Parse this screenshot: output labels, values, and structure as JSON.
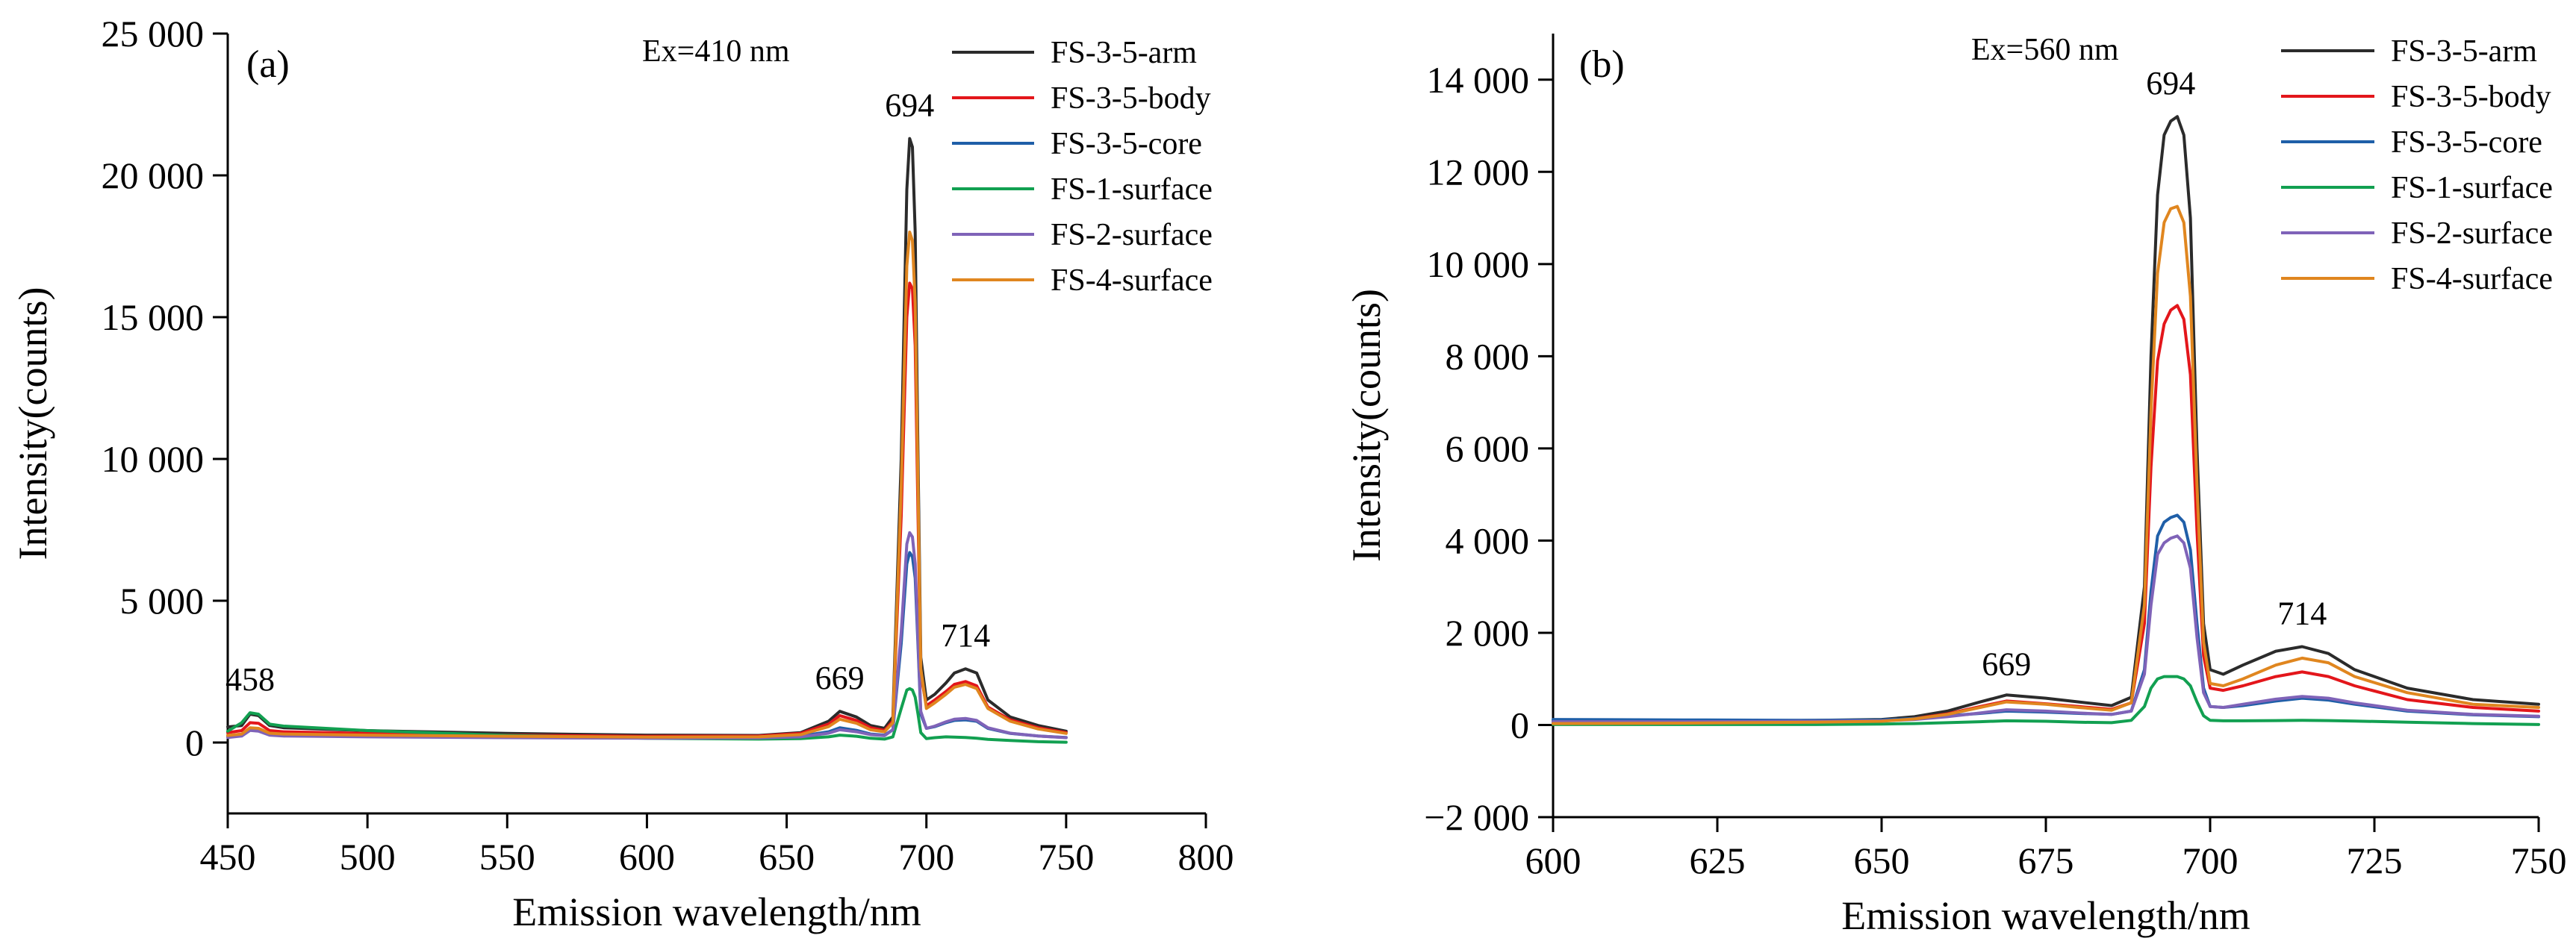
{
  "chart_data": [
    {
      "type": "line",
      "panel_label": "(a)",
      "annotation": "Ex=410 nm",
      "xlabel": "Emission wavelength/nm",
      "ylabel": "Intensity(counts)",
      "xlim": [
        450,
        800
      ],
      "ylim": [
        -2500,
        25000
      ],
      "xticks": [
        450,
        500,
        550,
        600,
        650,
        700,
        750,
        800
      ],
      "xtick_labels": [
        "450",
        "500",
        "550",
        "600",
        "650",
        "700",
        "750",
        "800"
      ],
      "yticks": [
        0,
        5000,
        10000,
        15000,
        20000,
        25000
      ],
      "ytick_labels": [
        "0",
        "5 000",
        "10 000",
        "15 000",
        "20 000",
        "25 000"
      ],
      "grid": false,
      "legend_position": "top-right",
      "peak_labels": [
        {
          "text": "458",
          "x": 458,
          "y": 1050
        },
        {
          "text": "669",
          "x": 669,
          "y": 1100
        },
        {
          "text": "694",
          "x": 694,
          "y": 21300
        },
        {
          "text": "714",
          "x": 714,
          "y": 2600
        }
      ],
      "series": [
        {
          "name": "FS-3-5-arm",
          "color": "#2b2b2b",
          "x": [
            450,
            455,
            458,
            461,
            465,
            470,
            500,
            550,
            600,
            640,
            655,
            665,
            669,
            675,
            680,
            685,
            688,
            691,
            693,
            694,
            695,
            696,
            697,
            698,
            700,
            703,
            707,
            710,
            714,
            718,
            722,
            730,
            740,
            750
          ],
          "y": [
            550,
            600,
            1000,
            950,
            600,
            520,
            420,
            320,
            260,
            250,
            350,
            750,
            1100,
            900,
            600,
            500,
            900,
            10000,
            19500,
            21300,
            21000,
            18000,
            10000,
            3000,
            1500,
            1700,
            2100,
            2450,
            2600,
            2450,
            1500,
            900,
            600,
            400
          ]
        },
        {
          "name": "FS-3-5-body",
          "color": "#e3161b",
          "x": [
            450,
            455,
            458,
            461,
            465,
            470,
            500,
            550,
            600,
            640,
            655,
            665,
            669,
            675,
            680,
            685,
            688,
            691,
            693,
            694,
            695,
            696,
            697,
            698,
            700,
            703,
            707,
            710,
            714,
            718,
            722,
            730,
            740,
            750
          ],
          "y": [
            350,
            420,
            700,
            680,
            420,
            380,
            320,
            260,
            220,
            230,
            320,
            650,
            950,
            780,
            520,
            430,
            750,
            8000,
            15000,
            16200,
            16000,
            14000,
            8000,
            2400,
            1300,
            1500,
            1800,
            2050,
            2150,
            2000,
            1250,
            800,
            520,
            350
          ]
        },
        {
          "name": "FS-3-5-core",
          "color": "#1f5fa8",
          "x": [
            450,
            455,
            458,
            461,
            465,
            470,
            500,
            550,
            600,
            640,
            655,
            665,
            669,
            675,
            680,
            685,
            688,
            691,
            693,
            694,
            695,
            696,
            697,
            698,
            700,
            703,
            707,
            710,
            714,
            718,
            722,
            730,
            740,
            750
          ],
          "y": [
            230,
            280,
            480,
            450,
            300,
            270,
            230,
            200,
            180,
            190,
            230,
            380,
            520,
            430,
            300,
            260,
            450,
            3500,
            6300,
            6700,
            6550,
            5800,
            3400,
            1000,
            500,
            560,
            700,
            780,
            800,
            750,
            500,
            320,
            230,
            180
          ]
        },
        {
          "name": "FS-1-surface",
          "color": "#12a051",
          "x": [
            450,
            455,
            458,
            461,
            465,
            470,
            500,
            550,
            600,
            640,
            655,
            665,
            669,
            675,
            680,
            685,
            688,
            691,
            693,
            694,
            695,
            696,
            697,
            698,
            700,
            703,
            707,
            710,
            714,
            718,
            722,
            730,
            740,
            750
          ],
          "y": [
            400,
            700,
            1050,
            1000,
            650,
            580,
            420,
            250,
            150,
            120,
            140,
            200,
            260,
            220,
            150,
            120,
            200,
            1200,
            1850,
            1900,
            1850,
            1600,
            1000,
            350,
            140,
            170,
            200,
            190,
            180,
            150,
            110,
            70,
            30,
            10
          ]
        },
        {
          "name": "FS-2-surface",
          "color": "#7f63b8",
          "x": [
            450,
            455,
            458,
            461,
            465,
            470,
            500,
            550,
            600,
            640,
            655,
            665,
            669,
            675,
            680,
            685,
            688,
            691,
            693,
            694,
            695,
            696,
            697,
            698,
            700,
            703,
            707,
            710,
            714,
            718,
            722,
            730,
            740,
            750
          ],
          "y": [
            180,
            230,
            430,
            400,
            260,
            230,
            200,
            170,
            150,
            160,
            200,
            330,
            450,
            380,
            280,
            240,
            450,
            3900,
            7000,
            7400,
            7250,
            6300,
            3600,
            1100,
            500,
            580,
            730,
            820,
            850,
            780,
            520,
            330,
            230,
            170
          ]
        },
        {
          "name": "FS-4-surface",
          "color": "#e0861f",
          "x": [
            450,
            455,
            458,
            461,
            465,
            470,
            500,
            550,
            600,
            640,
            655,
            665,
            669,
            675,
            680,
            685,
            688,
            691,
            693,
            694,
            695,
            696,
            697,
            698,
            700,
            703,
            707,
            710,
            714,
            718,
            722,
            730,
            740,
            750
          ],
          "y": [
            250,
            300,
            520,
            500,
            330,
            300,
            260,
            220,
            190,
            200,
            280,
            560,
            820,
            680,
            450,
            380,
            700,
            9000,
            16800,
            18000,
            17700,
            15500,
            9000,
            2600,
            1200,
            1400,
            1700,
            1950,
            2050,
            1900,
            1200,
            750,
            480,
            320
          ]
        }
      ]
    },
    {
      "type": "line",
      "panel_label": "(b)",
      "annotation": "Ex=560 nm",
      "xlabel": "Emission wavelength/nm",
      "ylabel": "Intensity(counts)",
      "xlim": [
        600,
        750
      ],
      "ylim": [
        -2000,
        15000
      ],
      "xticks": [
        600,
        625,
        650,
        675,
        700,
        725,
        750
      ],
      "xtick_labels": [
        "600",
        "625",
        "650",
        "675",
        "700",
        "725",
        "750"
      ],
      "yticks": [
        -2000,
        0,
        2000,
        4000,
        6000,
        8000,
        10000,
        12000,
        14000
      ],
      "ytick_labels": [
        "−2 000",
        "0",
        "2 000",
        "4 000",
        "6 000",
        "8 000",
        "10 000",
        "12 000",
        "14 000"
      ],
      "grid": false,
      "legend_position": "top-right",
      "peak_labels": [
        {
          "text": "669",
          "x": 669,
          "y": 600
        },
        {
          "text": "694",
          "x": 694,
          "y": 13200
        },
        {
          "text": "714",
          "x": 714,
          "y": 1700
        }
      ],
      "series": [
        {
          "name": "FS-3-5-arm",
          "color": "#2b2b2b",
          "x": [
            600,
            620,
            640,
            650,
            655,
            660,
            665,
            669,
            675,
            680,
            685,
            688,
            690,
            691,
            692,
            693,
            694,
            695,
            696,
            697,
            698,
            699,
            700,
            702,
            705,
            710,
            714,
            718,
            722,
            730,
            740,
            750
          ],
          "y": [
            80,
            90,
            100,
            120,
            180,
            300,
            500,
            650,
            580,
            500,
            420,
            600,
            3000,
            8000,
            11500,
            12800,
            13100,
            13200,
            12800,
            11000,
            6000,
            2200,
            1200,
            1100,
            1300,
            1600,
            1700,
            1550,
            1200,
            800,
            550,
            450
          ]
        },
        {
          "name": "FS-3-5-body",
          "color": "#e3161b",
          "x": [
            600,
            620,
            640,
            650,
            655,
            660,
            665,
            669,
            675,
            680,
            685,
            688,
            690,
            691,
            692,
            693,
            694,
            695,
            696,
            697,
            698,
            699,
            700,
            702,
            705,
            710,
            714,
            718,
            722,
            730,
            740,
            750
          ],
          "y": [
            50,
            60,
            70,
            90,
            140,
            240,
            400,
            520,
            460,
            400,
            340,
            480,
            2200,
            5600,
            7900,
            8700,
            9000,
            9100,
            8800,
            7600,
            4200,
            1500,
            800,
            750,
            850,
            1050,
            1150,
            1050,
            850,
            550,
            380,
            300
          ]
        },
        {
          "name": "FS-3-5-core",
          "color": "#1f5fa8",
          "x": [
            600,
            620,
            640,
            650,
            655,
            660,
            665,
            669,
            675,
            680,
            685,
            688,
            690,
            691,
            692,
            693,
            694,
            695,
            696,
            697,
            698,
            699,
            700,
            702,
            705,
            710,
            714,
            718,
            722,
            730,
            740,
            750
          ],
          "y": [
            120,
            110,
            100,
            110,
            140,
            200,
            250,
            300,
            280,
            250,
            230,
            300,
            1200,
            2900,
            4100,
            4400,
            4500,
            4550,
            4400,
            3800,
            2200,
            800,
            400,
            380,
            420,
            520,
            580,
            540,
            450,
            300,
            220,
            180
          ]
        },
        {
          "name": "FS-1-surface",
          "color": "#12a051",
          "x": [
            600,
            620,
            640,
            650,
            655,
            660,
            665,
            669,
            675,
            680,
            685,
            688,
            690,
            691,
            692,
            693,
            694,
            695,
            696,
            697,
            698,
            699,
            700,
            702,
            705,
            710,
            714,
            718,
            722,
            730,
            740,
            750
          ],
          "y": [
            10,
            10,
            10,
            20,
            30,
            50,
            70,
            90,
            80,
            60,
            50,
            100,
            400,
            800,
            1000,
            1050,
            1050,
            1050,
            1000,
            850,
            500,
            200,
            100,
            90,
            90,
            95,
            100,
            95,
            85,
            60,
            30,
            10
          ]
        },
        {
          "name": "FS-2-surface",
          "color": "#7f63b8",
          "x": [
            600,
            620,
            640,
            650,
            655,
            660,
            665,
            669,
            675,
            680,
            685,
            688,
            690,
            691,
            692,
            693,
            694,
            695,
            696,
            697,
            698,
            699,
            700,
            702,
            705,
            710,
            714,
            718,
            722,
            730,
            740,
            750
          ],
          "y": [
            70,
            70,
            80,
            90,
            120,
            180,
            260,
            330,
            300,
            260,
            230,
            300,
            1100,
            2600,
            3700,
            3950,
            4050,
            4100,
            3950,
            3400,
            1900,
            700,
            400,
            380,
            450,
            560,
            620,
            580,
            480,
            320,
            230,
            190
          ]
        },
        {
          "name": "FS-4-surface",
          "color": "#e0861f",
          "x": [
            600,
            620,
            640,
            650,
            655,
            660,
            665,
            669,
            675,
            680,
            685,
            688,
            690,
            691,
            692,
            693,
            694,
            695,
            696,
            697,
            698,
            699,
            700,
            702,
            705,
            710,
            714,
            718,
            722,
            730,
            740,
            750
          ],
          "y": [
            30,
            40,
            60,
            80,
            130,
            230,
            380,
            500,
            450,
            380,
            320,
            480,
            2600,
            6800,
            9800,
            10900,
            11200,
            11250,
            10900,
            9300,
            5200,
            1800,
            900,
            850,
            1000,
            1300,
            1450,
            1350,
            1050,
            700,
            450,
            380
          ]
        }
      ]
    }
  ]
}
